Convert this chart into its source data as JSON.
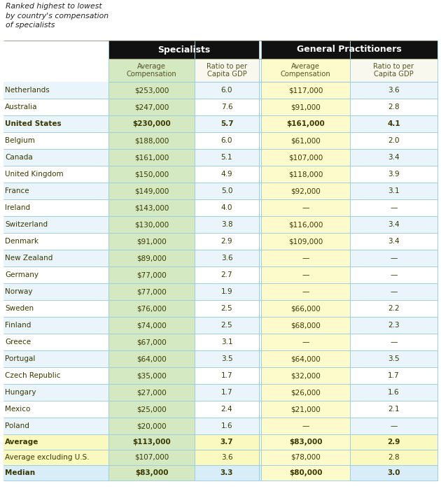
{
  "countries": [
    "Netherlands",
    "Australia",
    "United States",
    "Belgium",
    "Canada",
    "United Kingdom",
    "France",
    "Ireland",
    "Switzerland",
    "Denmark",
    "New Zealand",
    "Germany",
    "Norway",
    "Sweden",
    "Finland",
    "Greece",
    "Portugal",
    "Czech Republic",
    "Hungary",
    "Mexico",
    "Poland"
  ],
  "bold_rows": [
    2
  ],
  "spec_comp": [
    "$253,000",
    "$247,000",
    "$230,000",
    "$188,000",
    "$161,000",
    "$150,000",
    "$149,000",
    "$143,000",
    "$130,000",
    "$91,000",
    "$89,000",
    "$77,000",
    "$77,000",
    "$76,000",
    "$74,000",
    "$67,000",
    "$64,000",
    "$35,000",
    "$27,000",
    "$25,000",
    "$20,000"
  ],
  "spec_ratio": [
    "6.0",
    "7.6",
    "5.7",
    "6.0",
    "5.1",
    "4.9",
    "5.0",
    "4.0",
    "3.8",
    "2.9",
    "3.6",
    "2.7",
    "1.9",
    "2.5",
    "2.5",
    "3.1",
    "3.5",
    "1.7",
    "1.7",
    "2.4",
    "1.6"
  ],
  "gp_comp": [
    "$117,000",
    "$91,000",
    "$161,000",
    "$61,000",
    "$107,000",
    "$118,000",
    "$92,000",
    "—",
    "$116,000",
    "$109,000",
    "—",
    "—",
    "—",
    "$66,000",
    "$68,000",
    "—",
    "$64,000",
    "$32,000",
    "$26,000",
    "$21,000",
    "—"
  ],
  "gp_ratio": [
    "3.6",
    "2.8",
    "4.1",
    "2.0",
    "3.4",
    "3.9",
    "3.1",
    "—",
    "3.4",
    "3.4",
    "—",
    "—",
    "—",
    "2.2",
    "2.3",
    "—",
    "3.5",
    "1.7",
    "1.6",
    "2.1",
    "—"
  ],
  "summary_rows": [
    {
      "label": "Average",
      "bold": true,
      "spec_comp": "$113,000",
      "spec_ratio": "3.7",
      "gp_comp": "$83,000",
      "gp_ratio": "2.9"
    },
    {
      "label": "Average excluding U.S.",
      "bold": false,
      "spec_comp": "$107,000",
      "spec_ratio": "3.6",
      "gp_comp": "$78,000",
      "gp_ratio": "2.8"
    },
    {
      "label": "Median",
      "bold": true,
      "spec_comp": "$83,000",
      "spec_ratio": "3.3",
      "gp_comp": "$80,000",
      "gp_ratio": "3.0"
    }
  ],
  "bg_white": "#FFFFFF",
  "bg_spec_comp": "#D4E8C2",
  "bg_gp_comp": "#FDFACC",
  "bg_row_even": "#EAF4FB",
  "bg_row_odd": "#FFFFFF",
  "bg_summary_avg": "#FAFAC0",
  "bg_summary_excl": "#FAFAC0",
  "bg_summary_med": "#D8EDF8",
  "header_bg": "#111111",
  "header_fg": "#FFFFFF",
  "border_color": "#9ECFE0",
  "text_color": "#3A3800",
  "subhdr_color": "#555522"
}
